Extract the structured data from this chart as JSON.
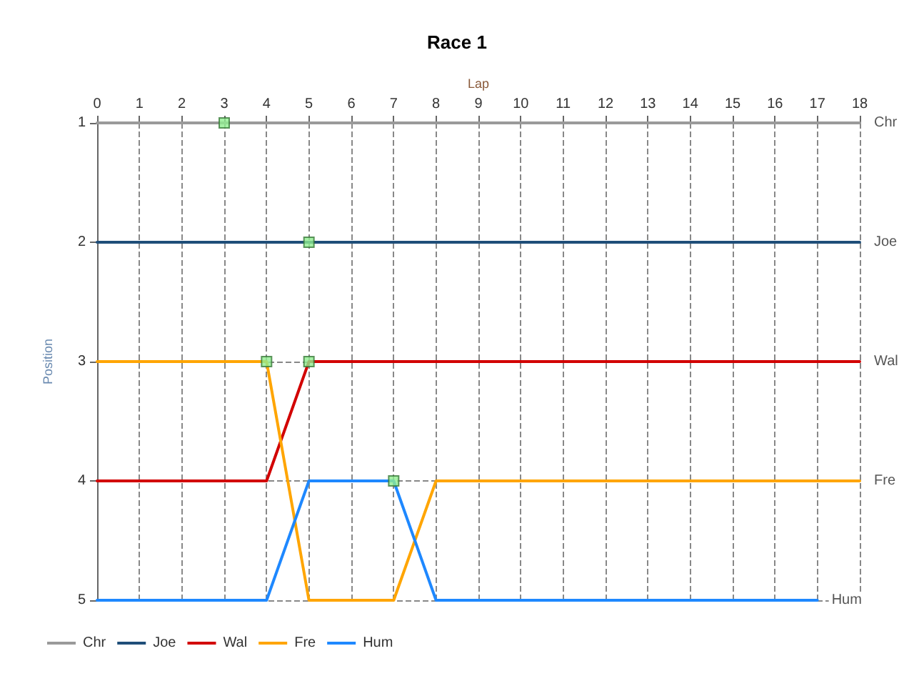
{
  "chart_data": {
    "type": "line",
    "title": "Race 1",
    "xlabel": "Lap",
    "ylabel": "Position",
    "x": [
      0,
      1,
      2,
      3,
      4,
      5,
      6,
      7,
      8,
      9,
      10,
      11,
      12,
      13,
      14,
      15,
      16,
      17,
      18
    ],
    "xlim": [
      0,
      18
    ],
    "xticks": [
      0,
      1,
      2,
      3,
      4,
      5,
      6,
      7,
      8,
      9,
      10,
      11,
      12,
      13,
      14,
      15,
      16,
      17,
      18
    ],
    "ylim": [
      5,
      1
    ],
    "yticks": [
      1,
      2,
      3,
      4,
      5
    ],
    "grid": true,
    "legend": "bottom left",
    "marker": "none",
    "line_style": "solid",
    "series": [
      {
        "name": "Chr",
        "color": "#9a9a9a",
        "values": [
          1,
          1,
          1,
          1,
          1,
          1,
          1,
          1,
          1,
          1,
          1,
          1,
          1,
          1,
          1,
          1,
          1,
          1,
          1
        ]
      },
      {
        "name": "Joe",
        "color": "#1f4e79",
        "values": [
          2,
          2,
          2,
          2,
          2,
          2,
          2,
          2,
          2,
          2,
          2,
          2,
          2,
          2,
          2,
          2,
          2,
          2,
          2
        ]
      },
      {
        "name": "Wal",
        "color": "#d20000",
        "values": [
          4,
          4,
          4,
          4,
          4,
          3,
          3,
          3,
          3,
          3,
          3,
          3,
          3,
          3,
          3,
          3,
          3,
          3,
          3
        ]
      },
      {
        "name": "Fre",
        "color": "#ffa500",
        "values": [
          3,
          3,
          3,
          3,
          3,
          5,
          5,
          5,
          4,
          4,
          4,
          4,
          4,
          4,
          4,
          4,
          4,
          4,
          4
        ]
      },
      {
        "name": "Hum",
        "color": "#1e88ff",
        "values": [
          5,
          5,
          5,
          5,
          5,
          4,
          4,
          4,
          5,
          5,
          5,
          5,
          5,
          5,
          5,
          5,
          5,
          5,
          null
        ]
      },
      {
        "type": "scatter",
        "color": "#90ee90",
        "marker": "square",
        "x": [
          3,
          5,
          4,
          5,
          7
        ],
        "values": [
          1,
          2,
          3,
          3,
          4
        ]
      }
    ]
  }
}
